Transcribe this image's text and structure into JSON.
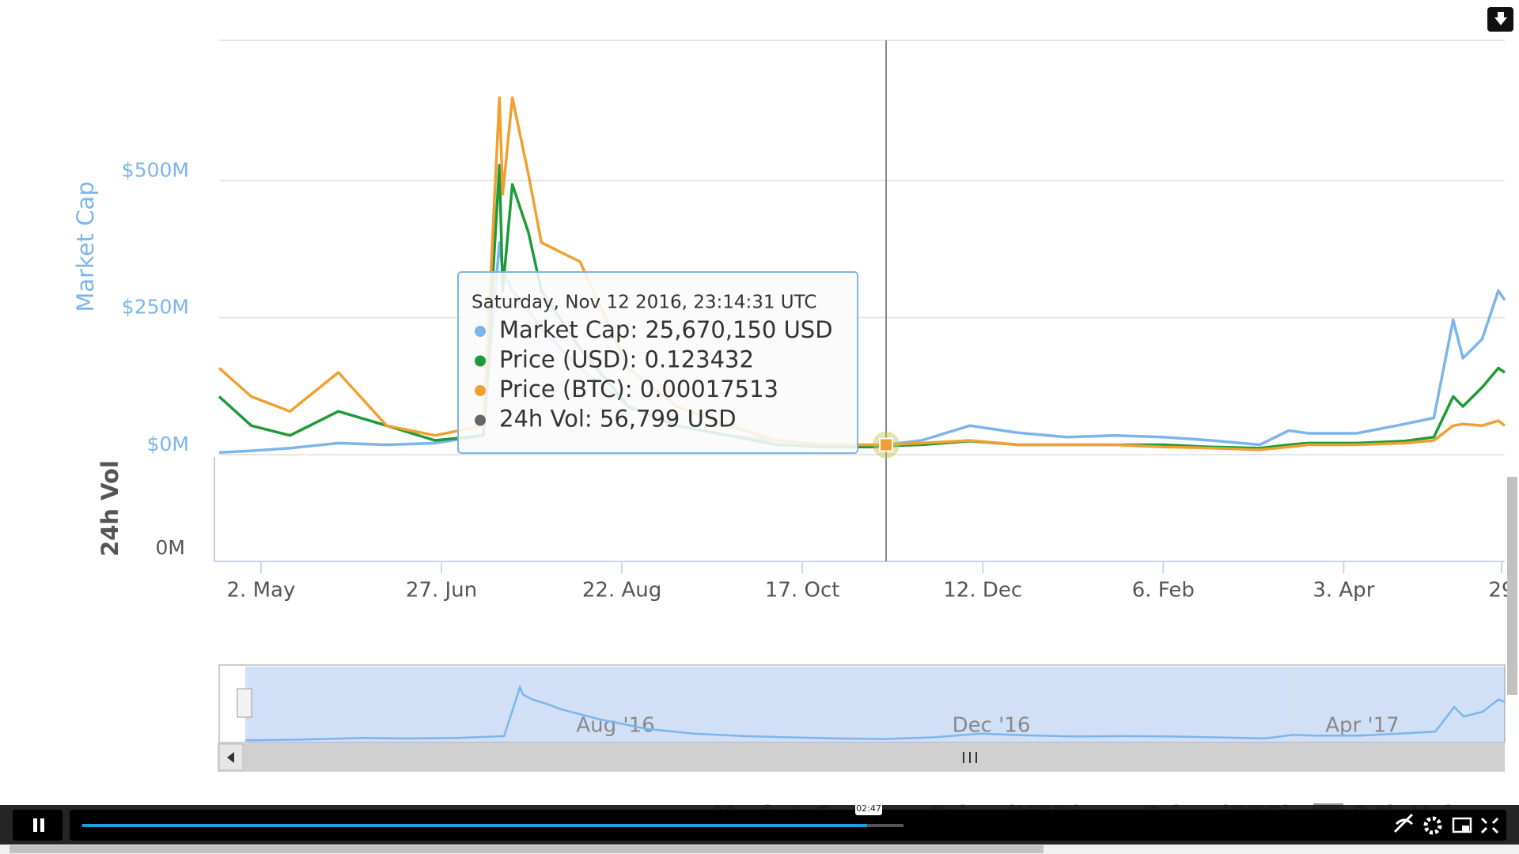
{
  "chart_data": {
    "type": "line",
    "ylabel": "Market Cap",
    "y3label": "24h Vol",
    "ylim": [
      0,
      750
    ],
    "yticks": [
      {
        "value": 0,
        "label": "$0M"
      },
      {
        "value": 250,
        "label": "$250M"
      },
      {
        "value": 500,
        "label": "$500M"
      }
    ],
    "vol_ticks": [
      {
        "value": 0,
        "label": "0M"
      }
    ],
    "xlim": [
      -13,
      386
    ],
    "xticks": [
      {
        "value": 0,
        "label": "2. May"
      },
      {
        "value": 56,
        "label": "27. Jun"
      },
      {
        "value": 112,
        "label": "22. Aug"
      },
      {
        "value": 168,
        "label": "17. Oct"
      },
      {
        "value": 224,
        "label": "12. Dec"
      },
      {
        "value": 280,
        "label": "6. Feb"
      },
      {
        "value": 336,
        "label": "3. Apr"
      },
      {
        "value": 385,
        "label": "29"
      }
    ],
    "grid": true,
    "x": [
      -13,
      -3,
      9,
      24,
      39,
      54,
      69,
      74,
      75,
      78,
      83,
      87,
      99,
      114,
      129,
      145,
      160,
      175,
      190,
      194,
      205,
      220,
      235,
      250,
      265,
      280,
      295,
      310,
      319,
      325,
      340,
      355,
      364,
      370,
      373,
      379,
      384,
      386
    ],
    "series": [
      {
        "name": "Market Cap",
        "color": "#7cb5ec",
        "values": [
          4,
          7,
          12,
          21,
          18,
          21,
          35,
          387,
          335,
          299,
          264,
          229,
          158,
          88,
          53,
          35,
          26,
          18,
          14,
          18,
          26,
          53,
          40,
          32,
          35,
          32,
          26,
          18,
          44,
          39,
          39,
          56,
          67,
          246,
          176,
          211,
          299,
          282
        ]
      },
      {
        "name": "Price (USD)",
        "color": "#1f9a3a",
        "values": [
          106,
          53,
          35,
          79,
          53,
          26,
          35,
          528,
          299,
          493,
          405,
          299,
          194,
          88,
          53,
          35,
          18,
          14,
          14,
          16,
          18,
          25,
          18,
          18,
          18,
          18,
          14,
          12,
          18,
          21,
          21,
          25,
          32,
          106,
          88,
          123,
          158,
          150
        ]
      },
      {
        "name": "Price (BTC)",
        "color": "#f0a030",
        "values": [
          158,
          106,
          79,
          150,
          53,
          35,
          53,
          651,
          475,
          651,
          511,
          387,
          352,
          158,
          88,
          53,
          26,
          18,
          18,
          18,
          21,
          26,
          18,
          18,
          18,
          14,
          12,
          9,
          14,
          18,
          18,
          21,
          26,
          53,
          56,
          53,
          62,
          53
        ]
      }
    ],
    "hover_index": 19,
    "tooltip": {
      "title": "Saturday, Nov 12 2016, 23:14:31 UTC",
      "rows": [
        "Market Cap: 25,670,150 USD",
        "Price (USD): 0.123432",
        "Price (BTC): 0.00017513",
        "24h Vol: 56,799 USD"
      ],
      "colors": [
        "#7cb5ec",
        "#1f9a3a",
        "#f0a030",
        "#666666"
      ]
    },
    "navigator_labels": [
      "Aug '16",
      "Dec '16",
      "Apr '17"
    ]
  },
  "video": {
    "time": "02:47"
  }
}
